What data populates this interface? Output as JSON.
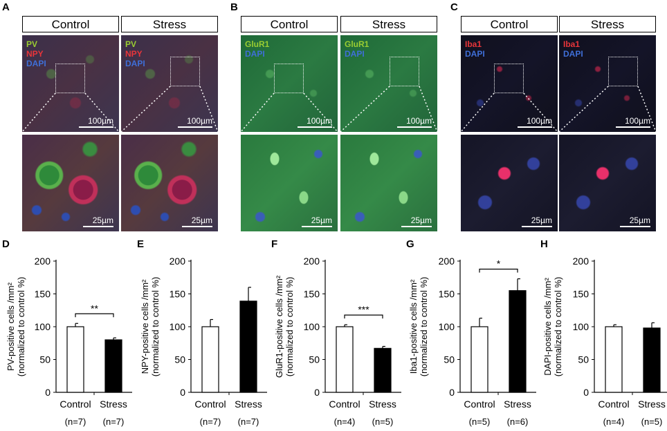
{
  "panels": {
    "A": {
      "letter": "A",
      "headers": [
        "Control",
        "Stress"
      ],
      "stains": [
        {
          "text": "PV",
          "color": "#9acd32"
        },
        {
          "text": "NPY",
          "color": "#e8353a"
        },
        {
          "text": "DAPI",
          "color": "#3f6fd8"
        }
      ],
      "scale_top": "100µm",
      "scale_bottom": "25µm"
    },
    "B": {
      "letter": "B",
      "headers": [
        "Control",
        "Stress"
      ],
      "stains": [
        {
          "text": "GluR1",
          "color": "#9acd32"
        },
        {
          "text": "DAPI",
          "color": "#3f6fd8"
        }
      ],
      "scale_top": "100µm",
      "scale_bottom": "25µm"
    },
    "C": {
      "letter": "C",
      "headers": [
        "Control",
        "Stress"
      ],
      "stains": [
        {
          "text": "Iba1",
          "color": "#e8353a"
        },
        {
          "text": "DAPI",
          "color": "#3f6fd8"
        }
      ],
      "scale_top": "100µm",
      "scale_bottom": "25µm"
    }
  },
  "colors": {
    "stress_bar": "#000000",
    "control_bar": "#ffffff"
  },
  "chart_data": [
    {
      "letter": "D",
      "type": "bar",
      "ylabel_line1": "PV-positive cells /mm²",
      "ylabel_line2": "(normalized to control %)",
      "categories": [
        "Control",
        "Stress"
      ],
      "n_labels": [
        "(n=7)",
        "(n=7)"
      ],
      "values": [
        100,
        80
      ],
      "errors": [
        5,
        3
      ],
      "ylim": [
        0,
        200
      ],
      "yticks": [
        0,
        50,
        100,
        150,
        200
      ],
      "significance": "**"
    },
    {
      "letter": "E",
      "type": "bar",
      "ylabel_line1": "NPY-positive cells /mm²",
      "ylabel_line2": "(normalized to control %)",
      "categories": [
        "Control",
        "Stress"
      ],
      "n_labels": [
        "(n=7)",
        "(n=7)"
      ],
      "values": [
        100,
        139
      ],
      "errors": [
        11,
        21
      ],
      "ylim": [
        0,
        200
      ],
      "yticks": [
        0,
        50,
        100,
        150,
        200
      ],
      "significance": ""
    },
    {
      "letter": "F",
      "type": "bar",
      "ylabel_line1": "GluR1-positive cells /mm²",
      "ylabel_line2": "(normalized to control %)",
      "categories": [
        "Control",
        "Stress"
      ],
      "n_labels": [
        "(n=4)",
        "(n=5)"
      ],
      "values": [
        100,
        67
      ],
      "errors": [
        3,
        3
      ],
      "ylim": [
        0,
        200
      ],
      "yticks": [
        0,
        50,
        100,
        150,
        200
      ],
      "significance": "***"
    },
    {
      "letter": "G",
      "type": "bar",
      "ylabel_line1": "Iba1-positive cells /mm²",
      "ylabel_line2": "(normalized to control %)",
      "categories": [
        "Control",
        "Stress"
      ],
      "n_labels": [
        "(n=5)",
        "(n=6)"
      ],
      "values": [
        100,
        155
      ],
      "errors": [
        13,
        18
      ],
      "ylim": [
        0,
        200
      ],
      "yticks": [
        0,
        50,
        100,
        150,
        200
      ],
      "significance": "*"
    },
    {
      "letter": "H",
      "type": "bar",
      "ylabel_line1": "DAPI-positive cells /mm²",
      "ylabel_line2": "(normalized to control %)",
      "categories": [
        "Control",
        "Stress"
      ],
      "n_labels": [
        "(n=4)",
        "(n=5)"
      ],
      "values": [
        100,
        98
      ],
      "errors": [
        3,
        8
      ],
      "ylim": [
        0,
        200
      ],
      "yticks": [
        0,
        50,
        100,
        150,
        200
      ],
      "significance": ""
    }
  ]
}
